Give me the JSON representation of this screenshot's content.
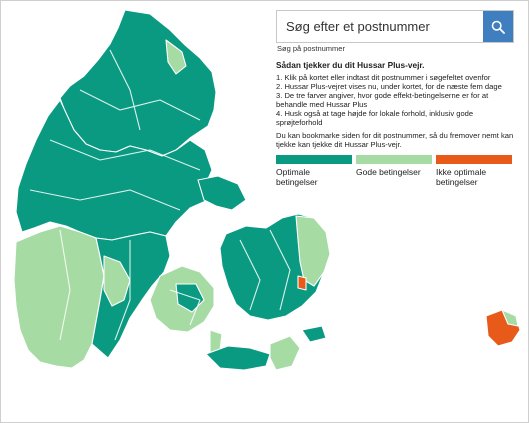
{
  "search": {
    "placeholder": "Søg efter et postnummer",
    "hint": "Søg på postnummer",
    "button_icon": "search-icon"
  },
  "help": {
    "title": "Sådan tjekker du dit Hussar Plus-vejr.",
    "steps": [
      "1. Klik på kortet eller indtast dit postnummer i søgefeltet ovenfor",
      "2. Hussar Plus-vejret vises nu, under kortet, for de næste fem dage",
      "3. De tre farver angiver, hvor gode effekt-betingelserne er for at behandle med Hussar Plus",
      "4. Husk også at tage højde for lokale forhold, inklusiv gode sprøjteforhold"
    ],
    "bookmark": "Du kan bookmarke siden for dit postnummer, så du fremover nemt kan tjekke kan tjekke dit Hussar Plus-vejr."
  },
  "legend": [
    {
      "label": "Optimale betingelser",
      "color": "#0a9a82"
    },
    {
      "label": "Gode betingelser",
      "color": "#a7dba4"
    },
    {
      "label": "Ikke optimale betingelser",
      "color": "#e85a1a"
    }
  ],
  "colors": {
    "optimal": "#0a9a82",
    "good": "#a7dba4",
    "not_optimal": "#e85a1a",
    "accent": "#3f7fbf"
  }
}
